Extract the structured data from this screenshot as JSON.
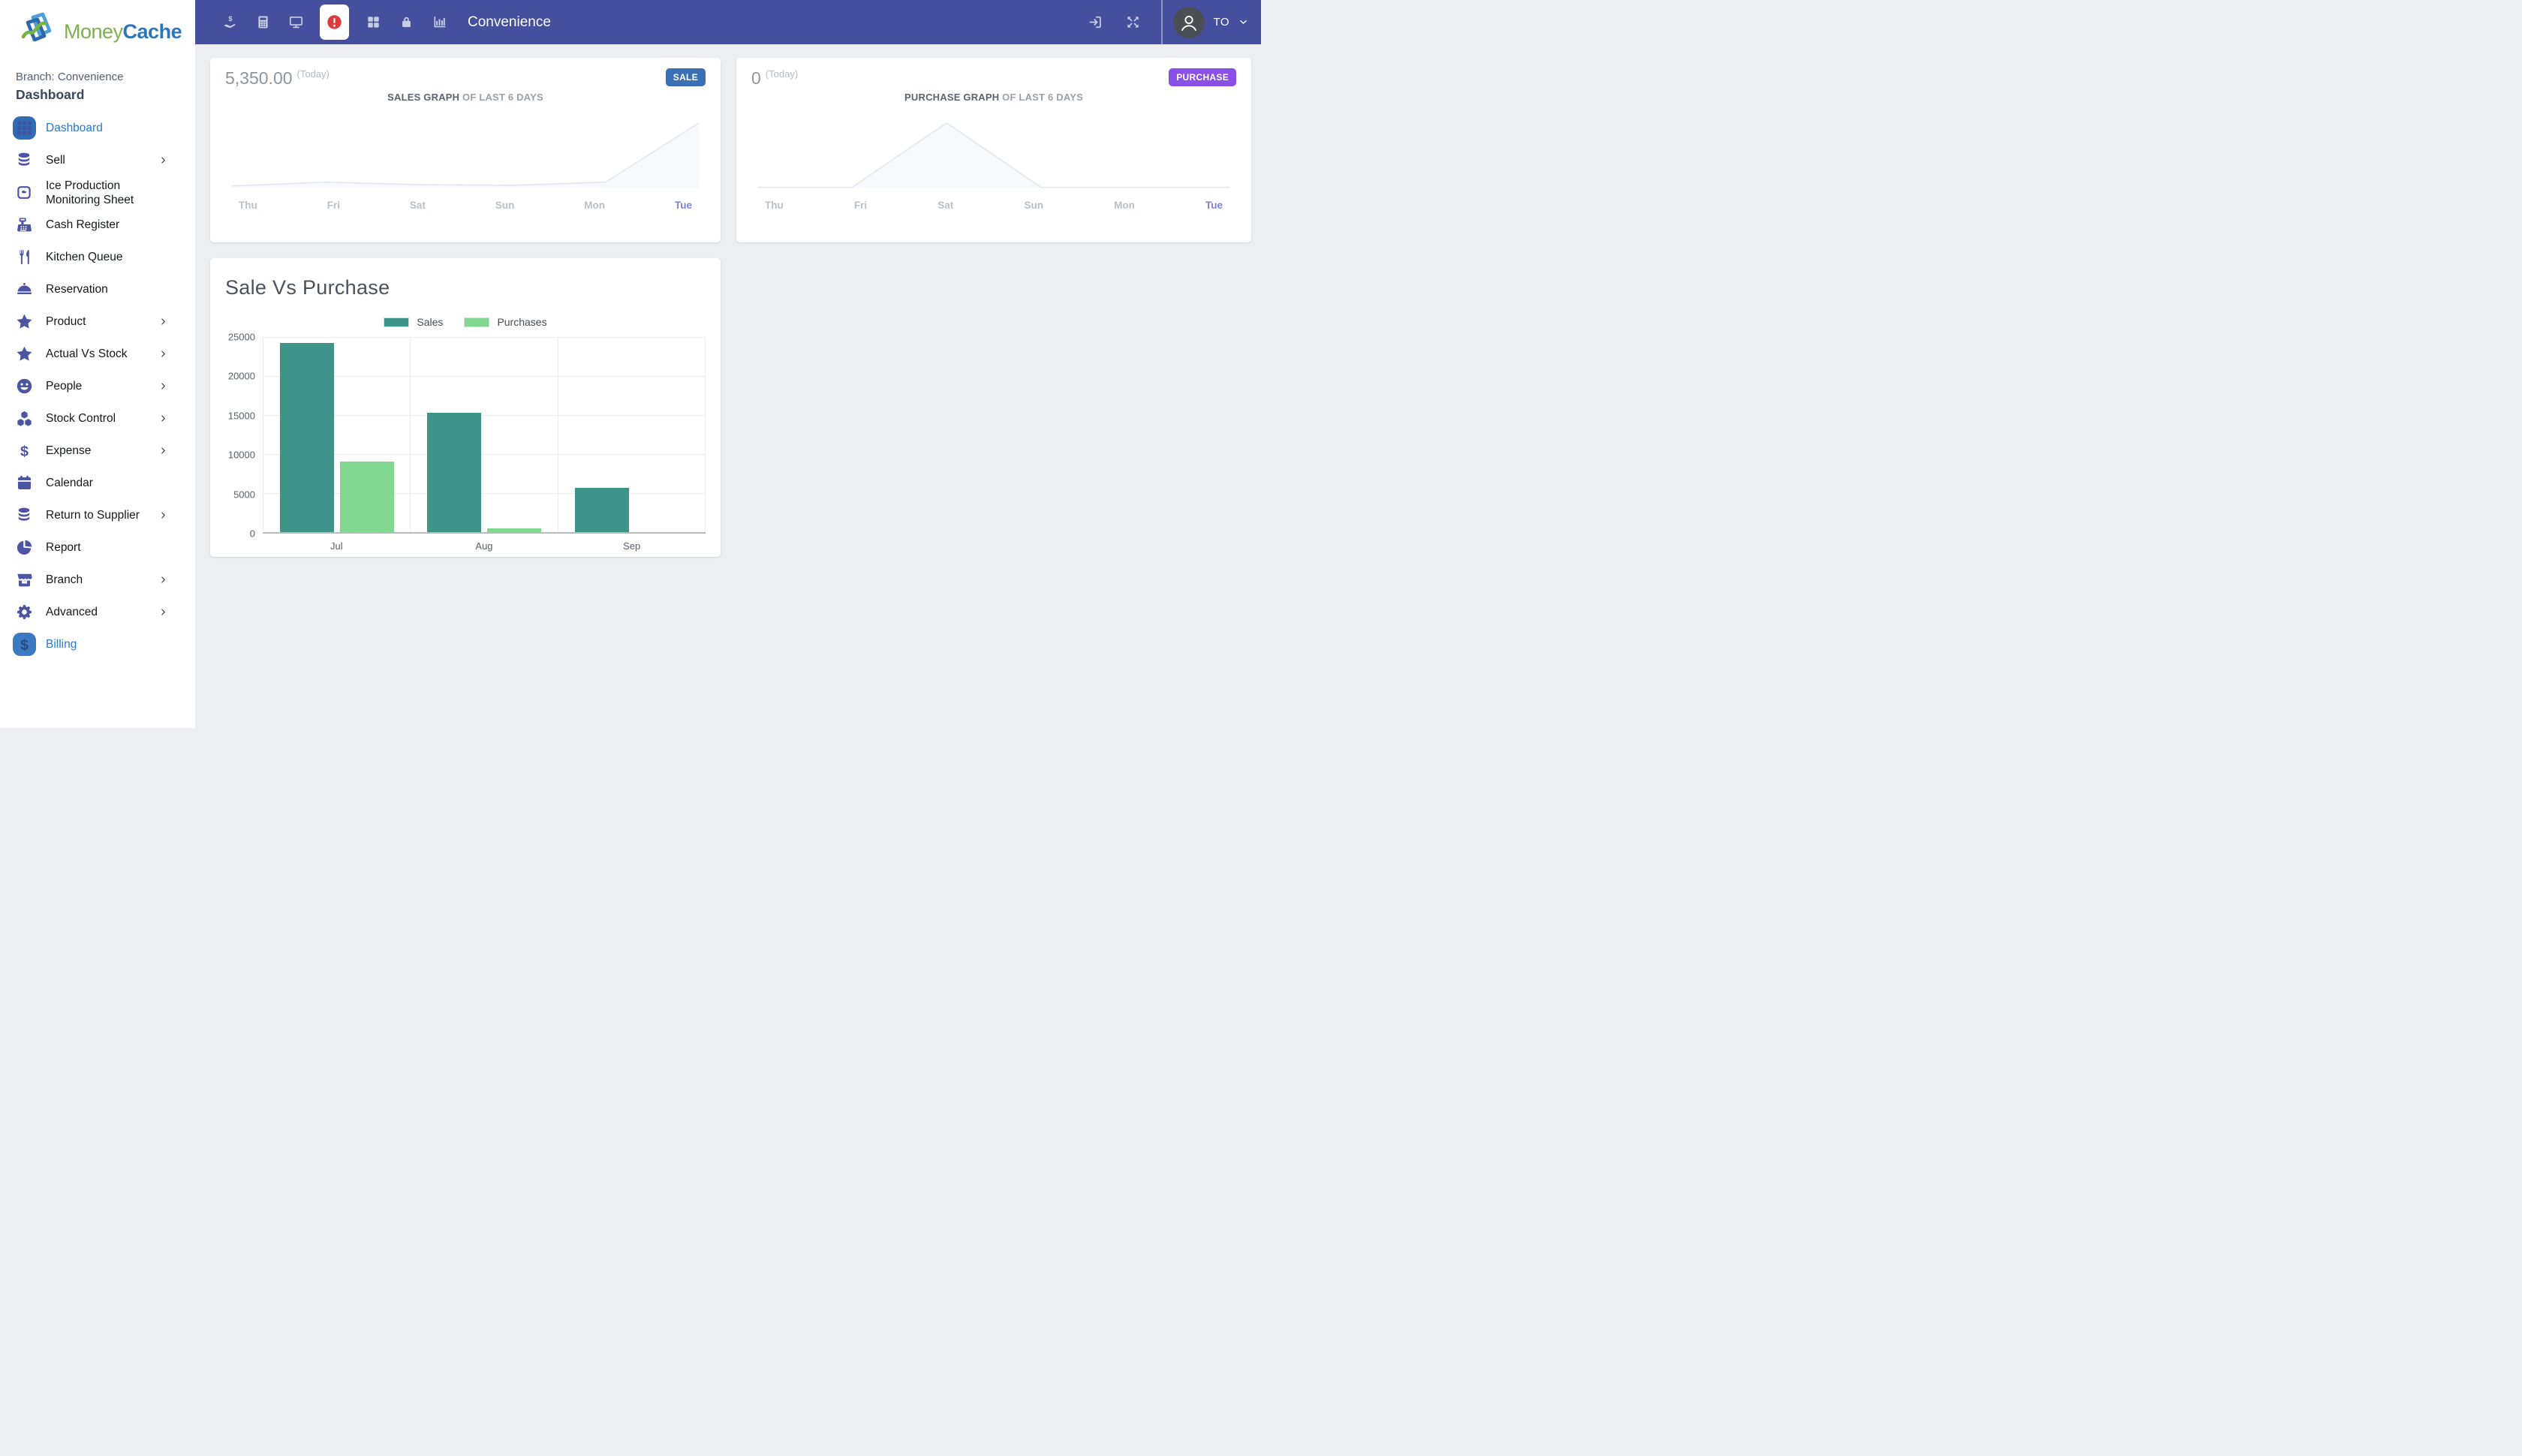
{
  "navbar": {
    "title": "Convenience",
    "left_icons": [
      {
        "key": "hand-holding-dollar",
        "name": "hand-holding-dollar-icon",
        "active": false
      },
      {
        "key": "calculator",
        "name": "calculator-icon",
        "active": false
      },
      {
        "key": "desktop",
        "name": "desktop-icon",
        "active": false
      },
      {
        "key": "alert",
        "name": "alert-icon",
        "active": true
      },
      {
        "key": "grid",
        "name": "grid-icon",
        "active": false
      },
      {
        "key": "lock",
        "name": "lock-icon",
        "active": false
      },
      {
        "key": "bar-chart",
        "name": "bar-chart-icon",
        "active": false
      }
    ],
    "right_icons": [
      {
        "key": "sign-in",
        "name": "sign-in-icon"
      },
      {
        "key": "expand",
        "name": "expand-icon"
      }
    ],
    "user": {
      "initials": "TO"
    }
  },
  "sidebar": {
    "logo_word1": "Money",
    "logo_word2": "Cache",
    "branch_label": "Branch: Convenience",
    "section_title": "Dashboard",
    "items": [
      {
        "label": "Dashboard",
        "icon": "dashboard",
        "badge": true,
        "active": true,
        "chevron": false
      },
      {
        "label": "Sell",
        "icon": "coins",
        "chevron": true
      },
      {
        "label": "Ice Production Monitoring Sheet",
        "icon": "ice-cube",
        "chevron": false
      },
      {
        "label": "Cash Register",
        "icon": "cash-register",
        "chevron": false
      },
      {
        "label": "Kitchen Queue",
        "icon": "utensils",
        "chevron": false
      },
      {
        "label": "Reservation",
        "icon": "cloche",
        "chevron": false
      },
      {
        "label": "Product",
        "icon": "star",
        "chevron": true
      },
      {
        "label": "Actual Vs Stock",
        "icon": "star",
        "chevron": true
      },
      {
        "label": "People",
        "icon": "smiley",
        "chevron": true
      },
      {
        "label": "Stock Control",
        "icon": "cubes",
        "chevron": true
      },
      {
        "label": "Expense",
        "icon": "dollar",
        "chevron": true
      },
      {
        "label": "Calendar",
        "icon": "calendar",
        "chevron": false
      },
      {
        "label": "Return to Supplier",
        "icon": "coins",
        "chevron": true
      },
      {
        "label": "Report",
        "icon": "pie-chart",
        "chevron": false
      },
      {
        "label": "Branch",
        "icon": "store",
        "chevron": true
      },
      {
        "label": "Advanced",
        "icon": "gear",
        "chevron": true
      },
      {
        "label": "Billing",
        "icon": "billing",
        "badge": true,
        "active": true,
        "chevron": false
      }
    ]
  },
  "sale_card": {
    "amount": "5,350.00",
    "period": "(Today)",
    "badge": "SALE",
    "title_strong": "SALES GRAPH",
    "title_rest": " OF LAST 6 DAYS",
    "days": [
      "Thu",
      "Fri",
      "Sat",
      "Sun",
      "Mon",
      "Tue"
    ],
    "active_day": "Tue"
  },
  "purchase_card": {
    "amount": "0",
    "period": "(Today)",
    "badge": "PURCHASE",
    "title_strong": "PURCHASE GRAPH",
    "title_rest": " OF LAST 6 DAYS",
    "days": [
      "Thu",
      "Fri",
      "Sat",
      "Sun",
      "Mon",
      "Tue"
    ],
    "active_day": "Tue"
  },
  "chart_data": [
    {
      "type": "line",
      "title": "SALES GRAPH OF LAST 6 DAYS",
      "x": [
        "Thu",
        "Fri",
        "Sat",
        "Sun",
        "Mon",
        "Tue"
      ],
      "values_relative_pct": [
        2,
        8,
        4,
        3,
        8,
        100
      ],
      "today_total": "5,350.00",
      "note": "no y-axis shown; Tue is today's peak",
      "line_color": "#e3e6eb",
      "area_color": "#f7f9fc"
    },
    {
      "type": "line",
      "title": "PURCHASE GRAPH OF LAST 6 DAYS",
      "x": [
        "Thu",
        "Fri",
        "Sat",
        "Sun",
        "Mon",
        "Tue"
      ],
      "values_relative_pct": [
        0,
        0,
        100,
        0,
        0,
        0
      ],
      "today_total": "0",
      "note": "no y-axis shown; single peak on Sat",
      "line_color": "#e3e6eb",
      "area_color": "#f7f9fc"
    },
    {
      "type": "bar",
      "title": "Sale Vs Purchase",
      "categories": [
        "Jul",
        "Aug",
        "Sep"
      ],
      "series": [
        {
          "name": "Sales",
          "color": "#3f9489",
          "values": [
            24200,
            15300,
            5650
          ]
        },
        {
          "name": "Purchases",
          "color": "#82d78e",
          "values": [
            9000,
            450,
            0
          ]
        }
      ],
      "ylim": [
        0,
        25000
      ],
      "yticks": [
        0,
        5000,
        10000,
        15000,
        20000,
        25000
      ],
      "grid": true,
      "legend_position": "top"
    }
  ],
  "colors": {
    "navbar_bg": "#454f9d",
    "sidebar_icon_indigo": "#4a55a4",
    "active_item_blue": "#2a78d0",
    "dashboard_badge_bg": "#2f6cb3",
    "billing_badge_bg": "#3b79c0",
    "sale_badge": "#3a6eb5",
    "purchase_badge": "#8a4fe8",
    "active_day": "#7b7ef0",
    "alert_red": "#dd3b3b",
    "sales_bar": "#3f9489",
    "purchases_bar": "#82d78e",
    "page_bg": "#eceef1",
    "logo_green": "#7db04e",
    "logo_blue": "#2e76bc"
  }
}
